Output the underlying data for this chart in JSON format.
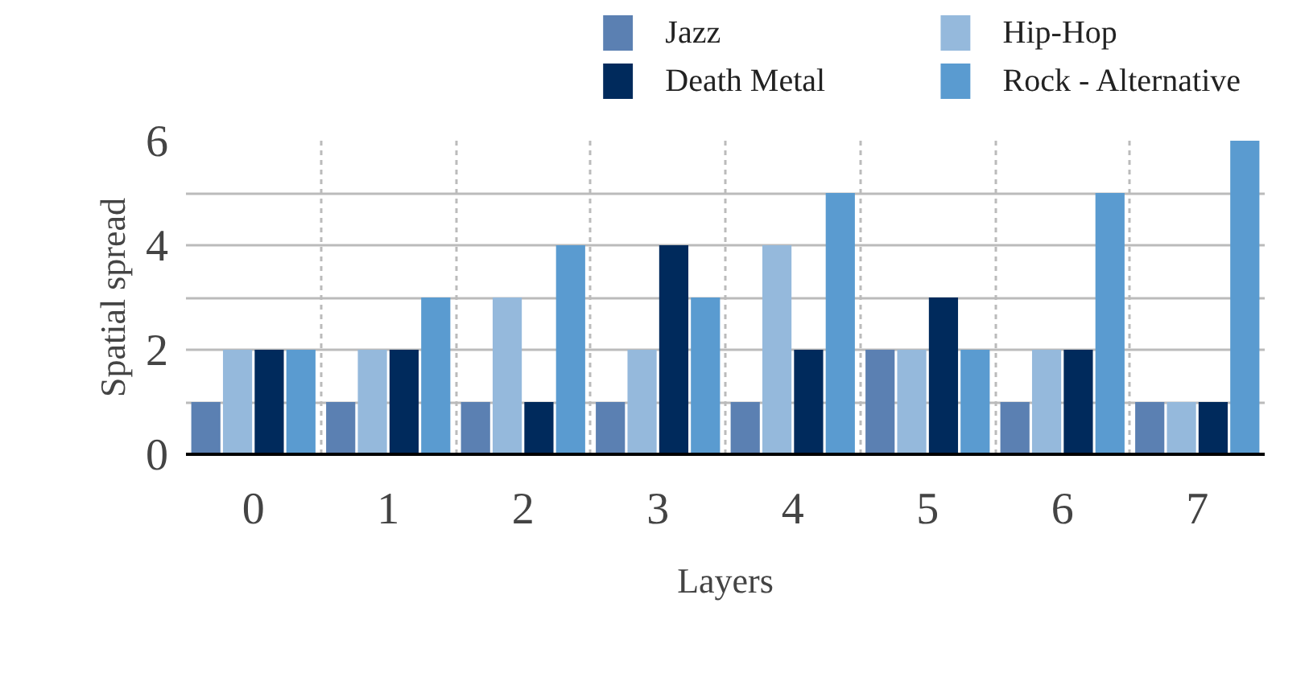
{
  "chart_data": {
    "type": "bar",
    "xlabel": "Layers",
    "ylabel": "Spatial spread",
    "categories": [
      "0",
      "1",
      "2",
      "3",
      "4",
      "5",
      "6",
      "7"
    ],
    "series": [
      {
        "name": "Jazz",
        "color": "#5b80b2",
        "values": [
          1,
          1,
          1,
          1,
          1,
          2,
          1,
          1
        ]
      },
      {
        "name": "Hip-Hop",
        "color": "#95b9dc",
        "values": [
          2,
          2,
          3,
          2,
          4,
          2,
          2,
          1
        ]
      },
      {
        "name": "Death Metal",
        "color": "#002a5c",
        "values": [
          2,
          2,
          1,
          4,
          2,
          3,
          2,
          1
        ]
      },
      {
        "name": "Rock - Alternative",
        "color": "#5a9bd0",
        "values": [
          2,
          3,
          4,
          3,
          5,
          2,
          5,
          6
        ]
      }
    ],
    "ylim": [
      0,
      6
    ],
    "yticks": [
      0,
      {
        "value": 1,
        "label": null
      },
      2,
      {
        "value": 3,
        "label": null
      },
      4,
      {
        "value": 5,
        "label": null
      },
      6
    ],
    "grid": true,
    "legend": "top"
  }
}
